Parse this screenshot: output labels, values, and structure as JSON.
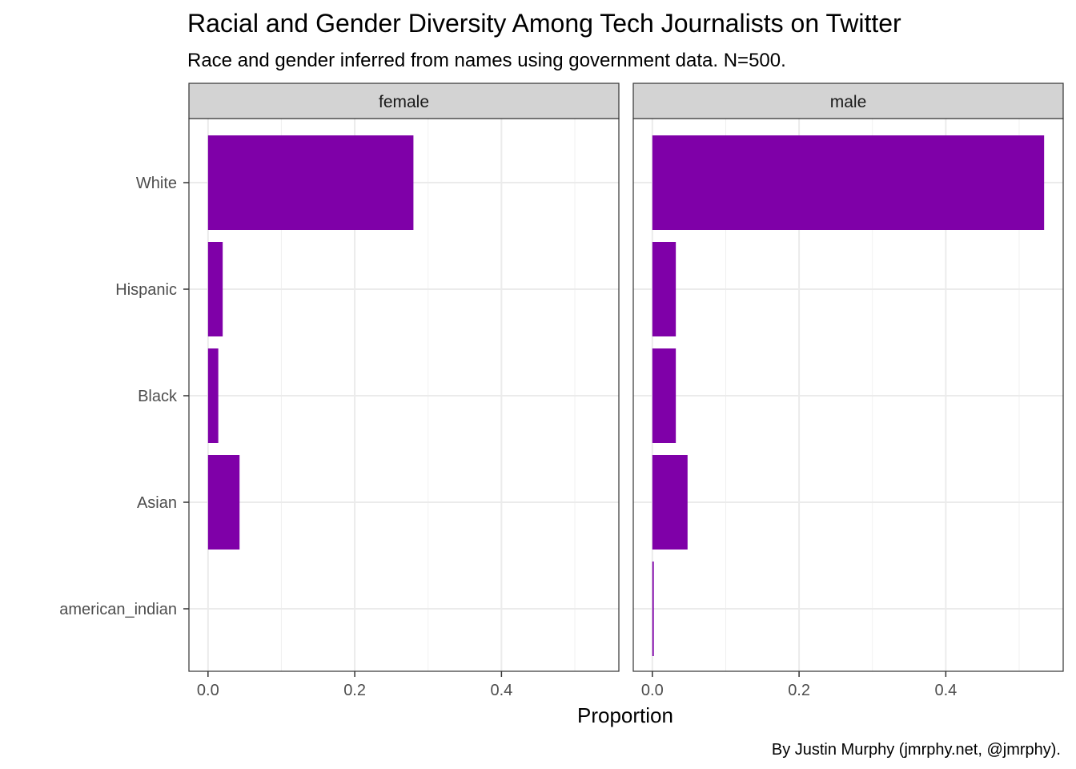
{
  "chart_data": {
    "type": "bar",
    "orientation": "horizontal",
    "faceted": true,
    "title": "Racial and Gender Diversity Among Tech Journalists on Twitter",
    "subtitle": "Race and gender inferred from names using government data. N=500.",
    "xlabel": "Proportion",
    "ylabel": "",
    "caption": "By Justin Murphy (jmrphy.net, @jmrphy).",
    "categories": [
      "White",
      "Hispanic",
      "Black",
      "Asian",
      "american_indian"
    ],
    "xlim": [
      -0.026,
      0.56
    ],
    "x_ticks": [
      0.0,
      0.2,
      0.4
    ],
    "x_tick_labels": [
      "0.0",
      "0.2",
      "0.4"
    ],
    "grid": true,
    "bar_color": "#7F00A8",
    "strip_color": "#D3D3D3",
    "panels": [
      {
        "label": "female",
        "values": [
          0.28,
          0.02,
          0.014,
          0.043,
          0.0
        ]
      },
      {
        "label": "male",
        "values": [
          0.534,
          0.032,
          0.032,
          0.048,
          0.002
        ]
      }
    ]
  }
}
